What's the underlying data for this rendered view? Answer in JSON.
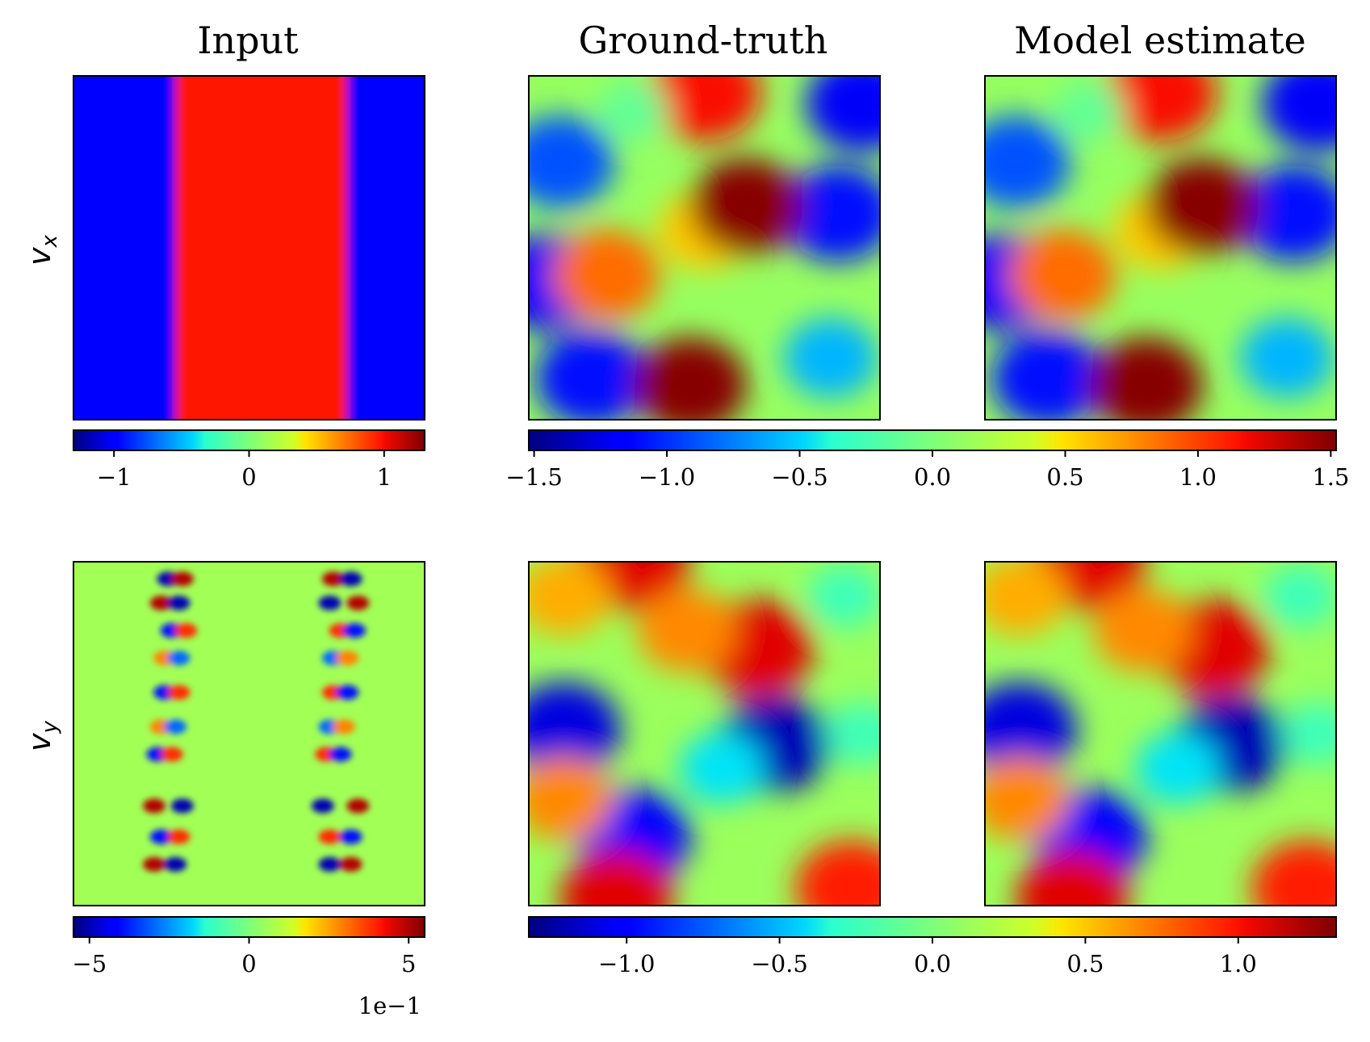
{
  "figure": {
    "columns": [
      "Input",
      "Ground-truth",
      "Model estimate"
    ],
    "rows": [
      {
        "label_base": "v",
        "label_sub": "x"
      },
      {
        "label_base": "v",
        "label_sub": "y"
      }
    ]
  },
  "chart_data": [
    {
      "type": "heatmap",
      "panel": "Input",
      "row": "v_x",
      "colormap": "jet",
      "vmin": -1.3,
      "vmax": 1.3,
      "colorbar_ticks": [
        -1,
        0,
        1
      ],
      "colorbar_tick_labels": [
        "−1",
        "0",
        "1"
      ],
      "offset_label": "",
      "pattern": "vertical shear layer: high band (~1.0) between two wavy interfaces near x=0.29 and x=0.78, low (~-1.0) elsewhere",
      "bands": [
        {
          "x_from": 0.0,
          "x_to": 0.29,
          "value": -1.0
        },
        {
          "x_from": 0.29,
          "x_to": 0.78,
          "value": 1.0
        },
        {
          "x_from": 0.78,
          "x_to": 1.0,
          "value": -1.0
        }
      ]
    },
    {
      "type": "heatmap",
      "panel": "Ground-truth",
      "row": "v_x",
      "colormap": "jet",
      "vmin": -1.52,
      "vmax": 1.52,
      "colorbar_ticks": [
        -1.5,
        -1.0,
        -0.5,
        0.0,
        0.5,
        1.0,
        1.5
      ],
      "colorbar_tick_labels": [
        "−1.5",
        "−1.0",
        "−0.5",
        "0.0",
        "0.5",
        "1.0",
        "1.5"
      ],
      "colorbar_shared_with": "Model estimate",
      "blobs": [
        {
          "x": 0.5,
          "y": 0.45,
          "value": 0.6
        },
        {
          "x": 0.62,
          "y": 0.4,
          "value": 0.7
        },
        {
          "x": 0.05,
          "y": 0.6,
          "value": -1.2
        },
        {
          "x": 0.18,
          "y": 0.88,
          "value": -1.1
        },
        {
          "x": 0.09,
          "y": 0.25,
          "value": -0.9
        },
        {
          "x": 0.88,
          "y": 0.4,
          "value": -1.1
        },
        {
          "x": 0.95,
          "y": 0.08,
          "value": -1.2
        },
        {
          "x": 0.86,
          "y": 0.82,
          "value": -0.6
        },
        {
          "x": 0.62,
          "y": 0.38,
          "value": 1.5
        },
        {
          "x": 0.46,
          "y": 0.9,
          "value": 1.5
        },
        {
          "x": 0.5,
          "y": 0.05,
          "value": 1.2
        },
        {
          "x": 0.22,
          "y": 0.58,
          "value": 0.9
        },
        {
          "x": 0.3,
          "y": 0.1,
          "value": -0.1
        }
      ]
    },
    {
      "type": "heatmap",
      "panel": "Model estimate",
      "row": "v_x",
      "colormap": "jet",
      "vmin": -1.52,
      "vmax": 1.52,
      "colorbar_shared_with": "Ground-truth",
      "blobs": [
        {
          "x": 0.5,
          "y": 0.45,
          "value": 0.6
        },
        {
          "x": 0.62,
          "y": 0.4,
          "value": 0.7
        },
        {
          "x": 0.05,
          "y": 0.6,
          "value": -1.2
        },
        {
          "x": 0.18,
          "y": 0.88,
          "value": -1.1
        },
        {
          "x": 0.09,
          "y": 0.25,
          "value": -0.9
        },
        {
          "x": 0.88,
          "y": 0.4,
          "value": -1.1
        },
        {
          "x": 0.95,
          "y": 0.08,
          "value": -1.2
        },
        {
          "x": 0.86,
          "y": 0.82,
          "value": -0.6
        },
        {
          "x": 0.62,
          "y": 0.38,
          "value": 1.5
        },
        {
          "x": 0.46,
          "y": 0.9,
          "value": 1.5
        },
        {
          "x": 0.5,
          "y": 0.05,
          "value": 1.2
        },
        {
          "x": 0.22,
          "y": 0.58,
          "value": 0.9
        },
        {
          "x": 0.3,
          "y": 0.1,
          "value": -0.1
        }
      ]
    },
    {
      "type": "heatmap",
      "panel": "Input",
      "row": "v_y",
      "colormap": "jet",
      "vmin": -5.5,
      "vmax": 5.5,
      "colorbar_ticks": [
        -5,
        0,
        5
      ],
      "colorbar_tick_labels": [
        "−5",
        "0",
        "5"
      ],
      "offset_label": "1e−1",
      "background_value": 0.5,
      "pattern": "alternating +/- lobes along two vertical interfaces near x=0.29 and x=0.78",
      "lobes": [
        {
          "x": 0.27,
          "y": 0.05,
          "value": -5.0
        },
        {
          "x": 0.31,
          "y": 0.05,
          "value": 5.0
        },
        {
          "x": 0.25,
          "y": 0.12,
          "value": 5.0
        },
        {
          "x": 0.3,
          "y": 0.12,
          "value": -5.0
        },
        {
          "x": 0.28,
          "y": 0.2,
          "value": -4.0
        },
        {
          "x": 0.32,
          "y": 0.2,
          "value": 4.0
        },
        {
          "x": 0.26,
          "y": 0.28,
          "value": 3.0
        },
        {
          "x": 0.3,
          "y": 0.28,
          "value": -3.0
        },
        {
          "x": 0.26,
          "y": 0.38,
          "value": -4.0
        },
        {
          "x": 0.3,
          "y": 0.38,
          "value": 4.0
        },
        {
          "x": 0.25,
          "y": 0.48,
          "value": 3.0
        },
        {
          "x": 0.29,
          "y": 0.48,
          "value": -3.0
        },
        {
          "x": 0.24,
          "y": 0.56,
          "value": -4.0
        },
        {
          "x": 0.28,
          "y": 0.56,
          "value": 4.0
        },
        {
          "x": 0.23,
          "y": 0.71,
          "value": 5.0
        },
        {
          "x": 0.31,
          "y": 0.71,
          "value": -5.0
        },
        {
          "x": 0.25,
          "y": 0.8,
          "value": -4.0
        },
        {
          "x": 0.3,
          "y": 0.8,
          "value": 4.0
        },
        {
          "x": 0.23,
          "y": 0.88,
          "value": 5.0
        },
        {
          "x": 0.29,
          "y": 0.88,
          "value": -5.0
        },
        {
          "x": 0.74,
          "y": 0.05,
          "value": 5.0
        },
        {
          "x": 0.79,
          "y": 0.05,
          "value": -5.0
        },
        {
          "x": 0.73,
          "y": 0.12,
          "value": -5.0
        },
        {
          "x": 0.81,
          "y": 0.12,
          "value": 5.0
        },
        {
          "x": 0.76,
          "y": 0.2,
          "value": 4.0
        },
        {
          "x": 0.8,
          "y": 0.2,
          "value": -4.0
        },
        {
          "x": 0.74,
          "y": 0.28,
          "value": -3.0
        },
        {
          "x": 0.78,
          "y": 0.28,
          "value": 3.0
        },
        {
          "x": 0.74,
          "y": 0.38,
          "value": 4.0
        },
        {
          "x": 0.78,
          "y": 0.38,
          "value": -4.0
        },
        {
          "x": 0.73,
          "y": 0.48,
          "value": -3.0
        },
        {
          "x": 0.77,
          "y": 0.48,
          "value": 3.0
        },
        {
          "x": 0.72,
          "y": 0.56,
          "value": 4.0
        },
        {
          "x": 0.76,
          "y": 0.56,
          "value": -4.0
        },
        {
          "x": 0.71,
          "y": 0.71,
          "value": -5.0
        },
        {
          "x": 0.81,
          "y": 0.71,
          "value": 5.0
        },
        {
          "x": 0.73,
          "y": 0.8,
          "value": 4.0
        },
        {
          "x": 0.79,
          "y": 0.8,
          "value": -4.0
        },
        {
          "x": 0.73,
          "y": 0.88,
          "value": -5.0
        },
        {
          "x": 0.79,
          "y": 0.88,
          "value": 5.0
        }
      ]
    },
    {
      "type": "heatmap",
      "panel": "Ground-truth",
      "row": "v_y",
      "colormap": "jet",
      "vmin": -1.32,
      "vmax": 1.32,
      "colorbar_ticks": [
        -1.0,
        -0.5,
        0.0,
        0.5,
        1.0
      ],
      "colorbar_tick_labels": [
        "−1.0",
        "−0.5",
        "0.0",
        "0.5",
        "1.0"
      ],
      "colorbar_shared_with": "Model estimate",
      "blobs": [
        {
          "x": 0.3,
          "y": 0.0,
          "value": 1.1
        },
        {
          "x": 0.65,
          "y": 0.25,
          "value": 1.1
        },
        {
          "x": 0.45,
          "y": 0.2,
          "value": 0.7
        },
        {
          "x": 0.1,
          "y": 0.1,
          "value": 0.6
        },
        {
          "x": 0.9,
          "y": 0.1,
          "value": -0.2
        },
        {
          "x": 0.1,
          "y": 0.49,
          "value": -1.1
        },
        {
          "x": 0.7,
          "y": 0.53,
          "value": -1.2
        },
        {
          "x": 0.3,
          "y": 0.8,
          "value": -1.0
        },
        {
          "x": 0.1,
          "y": 0.69,
          "value": 0.7
        },
        {
          "x": 0.25,
          "y": 0.98,
          "value": 1.1
        },
        {
          "x": 0.92,
          "y": 0.95,
          "value": 1.0
        },
        {
          "x": 0.55,
          "y": 0.6,
          "value": -0.4
        },
        {
          "x": 0.95,
          "y": 0.5,
          "value": -0.2
        }
      ]
    },
    {
      "type": "heatmap",
      "panel": "Model estimate",
      "row": "v_y",
      "colormap": "jet",
      "vmin": -1.32,
      "vmax": 1.32,
      "colorbar_shared_with": "Ground-truth",
      "blobs": [
        {
          "x": 0.3,
          "y": 0.0,
          "value": 1.1
        },
        {
          "x": 0.65,
          "y": 0.25,
          "value": 1.1
        },
        {
          "x": 0.45,
          "y": 0.2,
          "value": 0.7
        },
        {
          "x": 0.1,
          "y": 0.1,
          "value": 0.6
        },
        {
          "x": 0.9,
          "y": 0.1,
          "value": -0.2
        },
        {
          "x": 0.1,
          "y": 0.49,
          "value": -1.1
        },
        {
          "x": 0.7,
          "y": 0.53,
          "value": -1.2
        },
        {
          "x": 0.3,
          "y": 0.8,
          "value": -1.0
        },
        {
          "x": 0.1,
          "y": 0.69,
          "value": 0.7
        },
        {
          "x": 0.25,
          "y": 0.98,
          "value": 1.1
        },
        {
          "x": 0.92,
          "y": 0.95,
          "value": 1.0
        },
        {
          "x": 0.55,
          "y": 0.6,
          "value": -0.4
        },
        {
          "x": 0.95,
          "y": 0.5,
          "value": -0.2
        }
      ]
    }
  ]
}
